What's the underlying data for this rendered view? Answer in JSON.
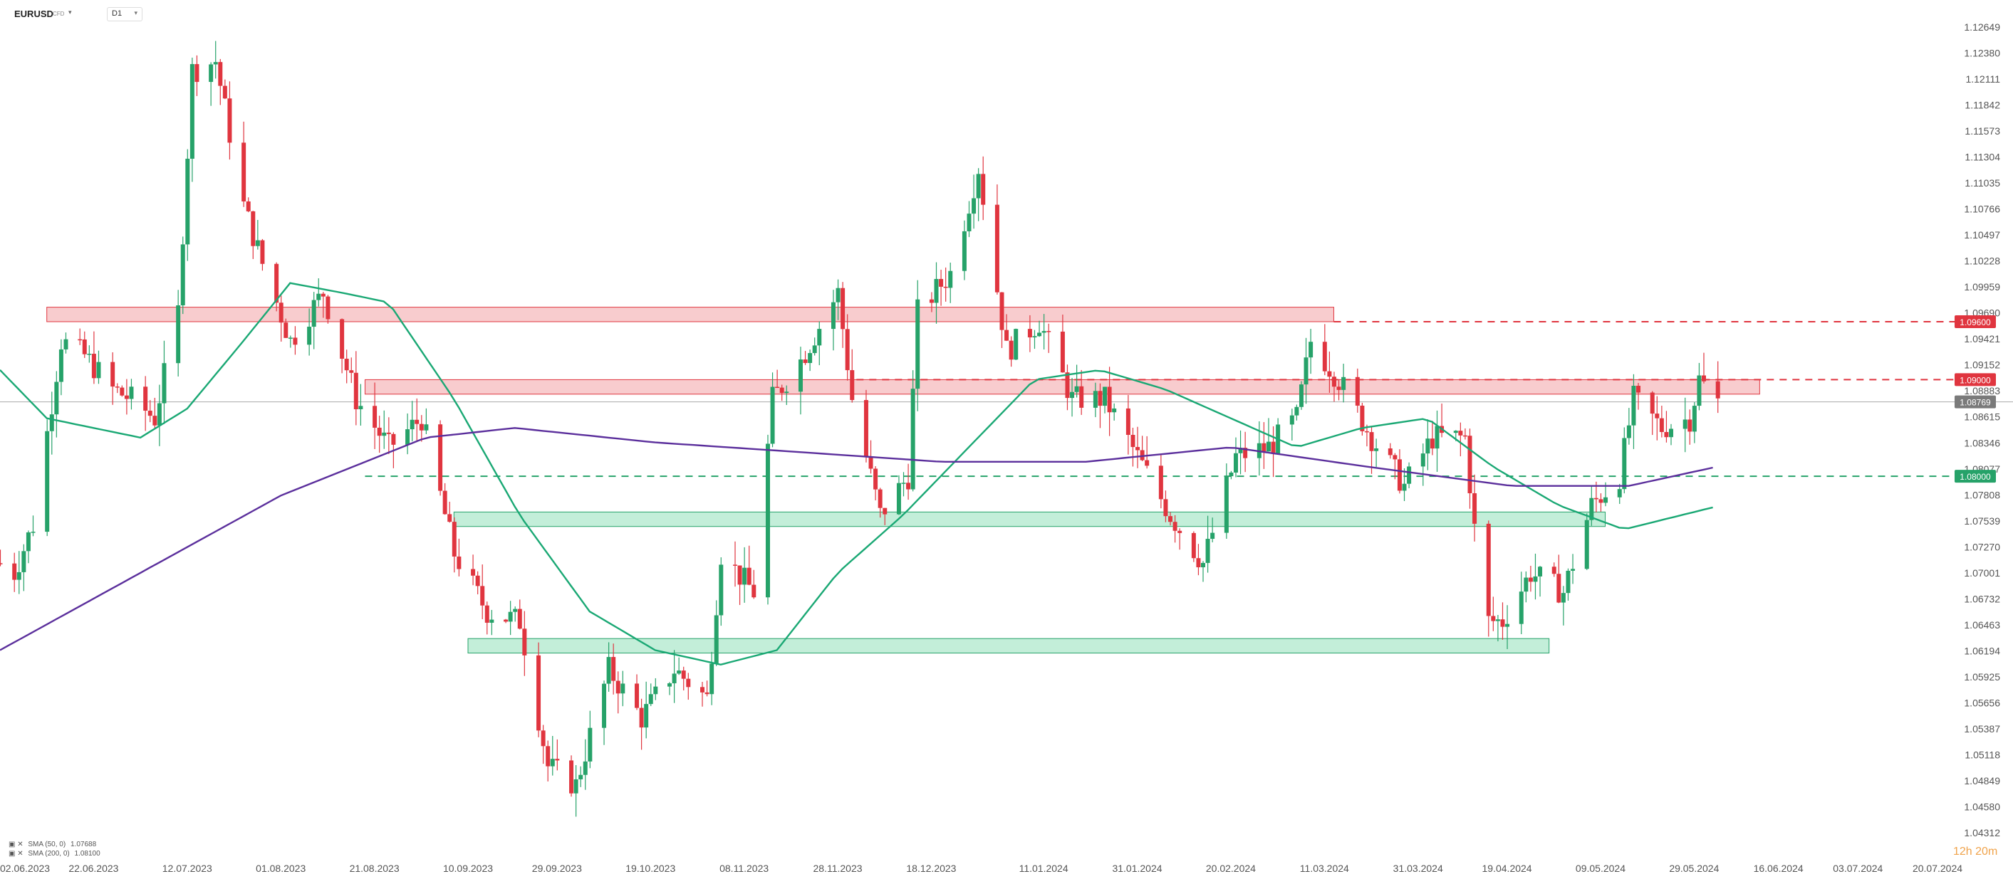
{
  "header": {
    "symbol": "EURUSD",
    "symbol_sub": "CFD",
    "timeframe": "D1"
  },
  "legend": {
    "sma50": {
      "label": "SMA (50, 0)",
      "value": "1.07688"
    },
    "sma200": {
      "label": "SMA (200, 0)",
      "value": "1.08100"
    }
  },
  "countdown": "12h 20m",
  "colors": {
    "bull": "#26a269",
    "bear": "#e0353f",
    "sma50": "#1aa874",
    "sma200": "#5b2f9c",
    "resistance_zone": "#f5b7b9",
    "support_zone": "#a9e7c9",
    "last_price": "#7a7a7a"
  },
  "chart_data": {
    "type": "candlestick",
    "y_axis": {
      "min": 1.0431,
      "max": 1.1265,
      "side": "right",
      "ticks": [
        "1.12649",
        "1.12380",
        "1.12111",
        "1.11842",
        "1.11573",
        "1.11304",
        "1.11035",
        "1.10766",
        "1.10497",
        "1.10228",
        "1.09959",
        "1.09690",
        "1.09421",
        "1.09152",
        "1.08883",
        "1.08615",
        "1.08346",
        "1.08077",
        "1.07808",
        "1.07539",
        "1.07270",
        "1.07001",
        "1.06732",
        "1.06463",
        "1.06194",
        "1.05925",
        "1.05656",
        "1.05387",
        "1.05118",
        "1.04849",
        "1.04580",
        "1.04312"
      ]
    },
    "x_axis": {
      "start": "2023-06-02",
      "end": "2024-07-20",
      "ticks": [
        "02.06.2023",
        "22.06.2023",
        "12.07.2023",
        "01.08.2023",
        "21.08.2023",
        "10.09.2023",
        "29.09.2023",
        "19.10.2023",
        "08.11.2023",
        "28.11.2023",
        "18.12.2023",
        "11.01.2024",
        "31.01.2024",
        "20.02.2024",
        "11.03.2024",
        "31.03.2024",
        "19.04.2024",
        "09.05.2024",
        "29.05.2024",
        "16.06.2024",
        "03.07.2024",
        "20.07.2024"
      ]
    },
    "price_path": [
      {
        "date": "2023-06-02",
        "price": 1.071
      },
      {
        "date": "2023-06-05",
        "price": 1.07
      },
      {
        "date": "2023-06-09",
        "price": 1.075
      },
      {
        "date": "2023-06-15",
        "price": 1.094
      },
      {
        "date": "2023-06-20",
        "price": 1.0925
      },
      {
        "date": "2023-06-26",
        "price": 1.089
      },
      {
        "date": "2023-06-30",
        "price": 1.088
      },
      {
        "date": "2023-07-05",
        "price": 1.086
      },
      {
        "date": "2023-07-10",
        "price": 1.097
      },
      {
        "date": "2023-07-13",
        "price": 1.122
      },
      {
        "date": "2023-07-18",
        "price": 1.123
      },
      {
        "date": "2023-07-24",
        "price": 1.108
      },
      {
        "date": "2023-07-28",
        "price": 1.102
      },
      {
        "date": "2023-08-03",
        "price": 1.094
      },
      {
        "date": "2023-08-10",
        "price": 1.099
      },
      {
        "date": "2023-08-17",
        "price": 1.088
      },
      {
        "date": "2023-08-24",
        "price": 1.083
      },
      {
        "date": "2023-08-31",
        "price": 1.086
      },
      {
        "date": "2023-09-07",
        "price": 1.072
      },
      {
        "date": "2023-09-14",
        "price": 1.066
      },
      {
        "date": "2023-09-21",
        "price": 1.065
      },
      {
        "date": "2023-09-27",
        "price": 1.05
      },
      {
        "date": "2023-10-03",
        "price": 1.048
      },
      {
        "date": "2023-10-10",
        "price": 1.06
      },
      {
        "date": "2023-10-17",
        "price": 1.055
      },
      {
        "date": "2023-10-24",
        "price": 1.06
      },
      {
        "date": "2023-10-31",
        "price": 1.057
      },
      {
        "date": "2023-11-03",
        "price": 1.072
      },
      {
        "date": "2023-11-10",
        "price": 1.068
      },
      {
        "date": "2023-11-14",
        "price": 1.088
      },
      {
        "date": "2023-11-20",
        "price": 1.092
      },
      {
        "date": "2023-11-28",
        "price": 1.099
      },
      {
        "date": "2023-12-01",
        "price": 1.088
      },
      {
        "date": "2023-12-07",
        "price": 1.076
      },
      {
        "date": "2023-12-13",
        "price": 1.08
      },
      {
        "date": "2023-12-15",
        "price": 1.097
      },
      {
        "date": "2023-12-22",
        "price": 1.101
      },
      {
        "date": "2023-12-28",
        "price": 1.112
      },
      {
        "date": "2024-01-03",
        "price": 1.093
      },
      {
        "date": "2024-01-10",
        "price": 1.096
      },
      {
        "date": "2024-01-17",
        "price": 1.088
      },
      {
        "date": "2024-01-24",
        "price": 1.088
      },
      {
        "date": "2024-01-31",
        "price": 1.082
      },
      {
        "date": "2024-02-07",
        "price": 1.076
      },
      {
        "date": "2024-02-14",
        "price": 1.071
      },
      {
        "date": "2024-02-21",
        "price": 1.082
      },
      {
        "date": "2024-02-28",
        "price": 1.083
      },
      {
        "date": "2024-03-05",
        "price": 1.086
      },
      {
        "date": "2024-03-08",
        "price": 1.094
      },
      {
        "date": "2024-03-14",
        "price": 1.09
      },
      {
        "date": "2024-03-21",
        "price": 1.084
      },
      {
        "date": "2024-03-28",
        "price": 1.079
      },
      {
        "date": "2024-04-03",
        "price": 1.084
      },
      {
        "date": "2024-04-10",
        "price": 1.084
      },
      {
        "date": "2024-04-14",
        "price": 1.065
      },
      {
        "date": "2024-04-18",
        "price": 1.065
      },
      {
        "date": "2024-04-24",
        "price": 1.07
      },
      {
        "date": "2024-05-01",
        "price": 1.068
      },
      {
        "date": "2024-05-07",
        "price": 1.077
      },
      {
        "date": "2024-05-13",
        "price": 1.08
      },
      {
        "date": "2024-05-16",
        "price": 1.088
      },
      {
        "date": "2024-05-22",
        "price": 1.085
      },
      {
        "date": "2024-05-28",
        "price": 1.086
      },
      {
        "date": "2024-05-30",
        "price": 1.09
      },
      {
        "date": "2024-06-03",
        "price": 1.0877
      }
    ],
    "sma50_path": [
      {
        "date": "2023-06-02",
        "value": 1.091
      },
      {
        "date": "2023-06-12",
        "value": 1.086
      },
      {
        "date": "2023-06-22",
        "value": 1.085
      },
      {
        "date": "2023-07-02",
        "value": 1.084
      },
      {
        "date": "2023-07-12",
        "value": 1.087
      },
      {
        "date": "2023-07-24",
        "value": 1.094
      },
      {
        "date": "2023-08-03",
        "value": 1.1
      },
      {
        "date": "2023-08-14",
        "value": 1.099
      },
      {
        "date": "2023-08-24",
        "value": 1.098
      },
      {
        "date": "2023-09-07",
        "value": 1.088
      },
      {
        "date": "2023-09-21",
        "value": 1.076
      },
      {
        "date": "2023-10-06",
        "value": 1.066
      },
      {
        "date": "2023-10-20",
        "value": 1.062
      },
      {
        "date": "2023-11-03",
        "value": 1.0605
      },
      {
        "date": "2023-11-15",
        "value": 1.062
      },
      {
        "date": "2023-11-28",
        "value": 1.07
      },
      {
        "date": "2023-12-12",
        "value": 1.076
      },
      {
        "date": "2023-12-26",
        "value": 1.083
      },
      {
        "date": "2024-01-09",
        "value": 1.09
      },
      {
        "date": "2024-01-23",
        "value": 1.091
      },
      {
        "date": "2024-02-06",
        "value": 1.089
      },
      {
        "date": "2024-02-20",
        "value": 1.086
      },
      {
        "date": "2024-03-05",
        "value": 1.083
      },
      {
        "date": "2024-03-19",
        "value": 1.085
      },
      {
        "date": "2024-04-02",
        "value": 1.086
      },
      {
        "date": "2024-04-16",
        "value": 1.081
      },
      {
        "date": "2024-04-30",
        "value": 1.077
      },
      {
        "date": "2024-05-14",
        "value": 1.0745
      },
      {
        "date": "2024-06-03",
        "value": 1.0769
      }
    ],
    "sma200_path": [
      {
        "date": "2023-06-02",
        "value": 1.062
      },
      {
        "date": "2023-07-02",
        "value": 1.07
      },
      {
        "date": "2023-08-01",
        "value": 1.078
      },
      {
        "date": "2023-09-01",
        "value": 1.084
      },
      {
        "date": "2023-09-20",
        "value": 1.085
      },
      {
        "date": "2023-10-20",
        "value": 1.0835
      },
      {
        "date": "2023-11-20",
        "value": 1.0825
      },
      {
        "date": "2023-12-20",
        "value": 1.0815
      },
      {
        "date": "2024-01-20",
        "value": 1.0815
      },
      {
        "date": "2024-02-20",
        "value": 1.083
      },
      {
        "date": "2024-03-20",
        "value": 1.081
      },
      {
        "date": "2024-04-20",
        "value": 1.079
      },
      {
        "date": "2024-05-15",
        "value": 1.079
      },
      {
        "date": "2024-06-03",
        "value": 1.081
      }
    ],
    "zones": [
      {
        "kind": "resistance",
        "from": "2023-06-12",
        "to": "2024-03-13",
        "low": 1.096,
        "high": 1.0975
      },
      {
        "kind": "resistance",
        "from": "2023-08-19",
        "to": "2024-06-12",
        "low": 1.0885,
        "high": 1.09
      },
      {
        "kind": "support",
        "from": "2023-09-07",
        "to": "2024-05-10",
        "low": 1.0748,
        "high": 1.0763
      },
      {
        "kind": "support",
        "from": "2023-09-10",
        "to": "2024-04-28",
        "low": 1.0617,
        "high": 1.0632
      }
    ],
    "levels": [
      {
        "kind": "resistance",
        "value": 1.096,
        "label": "1.09600",
        "from": "2024-03-13"
      },
      {
        "kind": "resistance",
        "value": 1.09,
        "label": "1.09000",
        "from": "2023-12-02"
      },
      {
        "kind": "support",
        "value": 1.08,
        "label": "1.08000",
        "from": "2023-08-19"
      }
    ],
    "last_price": {
      "value": 1.0877,
      "label": "1.08769"
    }
  }
}
